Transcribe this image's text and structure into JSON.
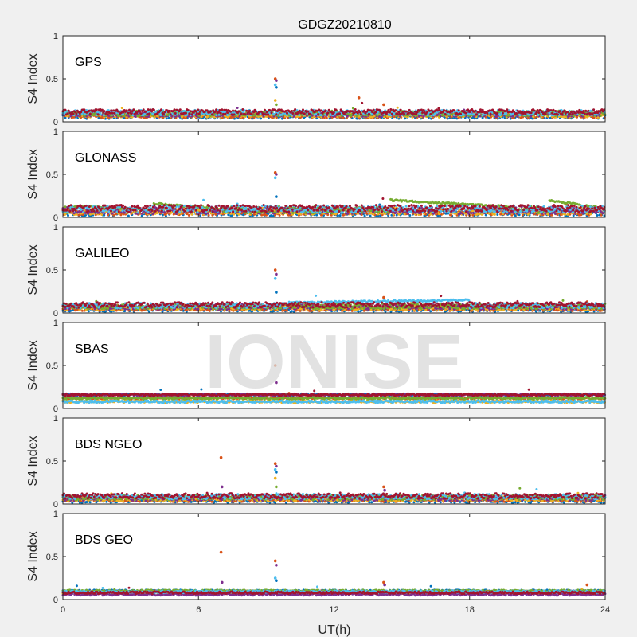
{
  "chart_data": {
    "type": "scatter",
    "title": "GDGZ20210810",
    "xlabel": "UT(h)",
    "ylabel": "S4 Index",
    "xlim": [
      0,
      24
    ],
    "ylim": [
      0,
      1
    ],
    "xticks": [
      0,
      6,
      12,
      18,
      24
    ],
    "yticks": [
      0,
      0.5,
      1
    ],
    "ytick_labels": [
      "0",
      "0.5",
      "1"
    ],
    "watermark": "IONISE",
    "colors": [
      "#0072BD",
      "#D95319",
      "#EDB120",
      "#7E2F8E",
      "#77AC30",
      "#4DBEEE",
      "#A2142F"
    ],
    "panels": [
      {
        "label": "GPS",
        "baseline": 0.09,
        "noise": 0.03,
        "spikes": [
          {
            "x": 9.4,
            "values": [
              0.5,
              0.48,
              0.43,
              0.4,
              0.25,
              0.2
            ]
          },
          {
            "x": 13.1,
            "values": [
              0.28
            ]
          },
          {
            "x": 14.2,
            "values": [
              0.2
            ]
          }
        ]
      },
      {
        "label": "GLONASS",
        "baseline": 0.08,
        "noise": 0.04,
        "spikes": [
          {
            "x": 9.4,
            "values": [
              0.52,
              0.5,
              0.46,
              0.24
            ]
          }
        ],
        "arcs": [
          {
            "x0": 14.5,
            "x1": 20.0,
            "y0": 0.2,
            "y1": 0.12
          },
          {
            "x0": 4.0,
            "x1": 7.0,
            "y0": 0.16,
            "y1": 0.1
          },
          {
            "x0": 21.5,
            "x1": 24.0,
            "y0": 0.2,
            "y1": 0.1
          },
          {
            "x0": 0.5,
            "x1": 4.0,
            "y0": 0.13,
            "y1": 0.09
          }
        ]
      },
      {
        "label": "GALILEO",
        "baseline": 0.07,
        "noise": 0.03,
        "spikes": [
          {
            "x": 9.4,
            "values": [
              0.5,
              0.45,
              0.4,
              0.24
            ]
          },
          {
            "x": 14.2,
            "values": [
              0.18
            ]
          }
        ],
        "arcs": [
          {
            "x0": 10.0,
            "x1": 18.0,
            "y0": 0.12,
            "y1": 0.15
          }
        ]
      },
      {
        "label": "SBAS",
        "baseline": 0.1,
        "noise": 0.03,
        "spikes": [
          {
            "x": 9.4,
            "values": [
              0.5,
              0.3
            ]
          }
        ],
        "bands": [
          0.16,
          0.12,
          0.08
        ]
      },
      {
        "label": "BDS NGEO",
        "baseline": 0.07,
        "noise": 0.03,
        "spikes": [
          {
            "x": 7.0,
            "values": [
              0.54,
              0.2
            ]
          },
          {
            "x": 9.4,
            "values": [
              0.47,
              0.44,
              0.4,
              0.37,
              0.3,
              0.2
            ]
          },
          {
            "x": 14.2,
            "values": [
              0.2,
              0.16
            ]
          }
        ]
      },
      {
        "label": "BDS GEO",
        "baseline": 0.08,
        "noise": 0.02,
        "spikes": [
          {
            "x": 7.0,
            "values": [
              0.55,
              0.2
            ]
          },
          {
            "x": 9.4,
            "values": [
              0.45,
              0.4,
              0.25,
              0.22
            ]
          },
          {
            "x": 14.2,
            "values": [
              0.2,
              0.17
            ]
          },
          {
            "x": 23.2,
            "values": [
              0.17
            ]
          }
        ],
        "bands": [
          0.1,
          0.09,
          0.08,
          0.06
        ]
      }
    ]
  }
}
